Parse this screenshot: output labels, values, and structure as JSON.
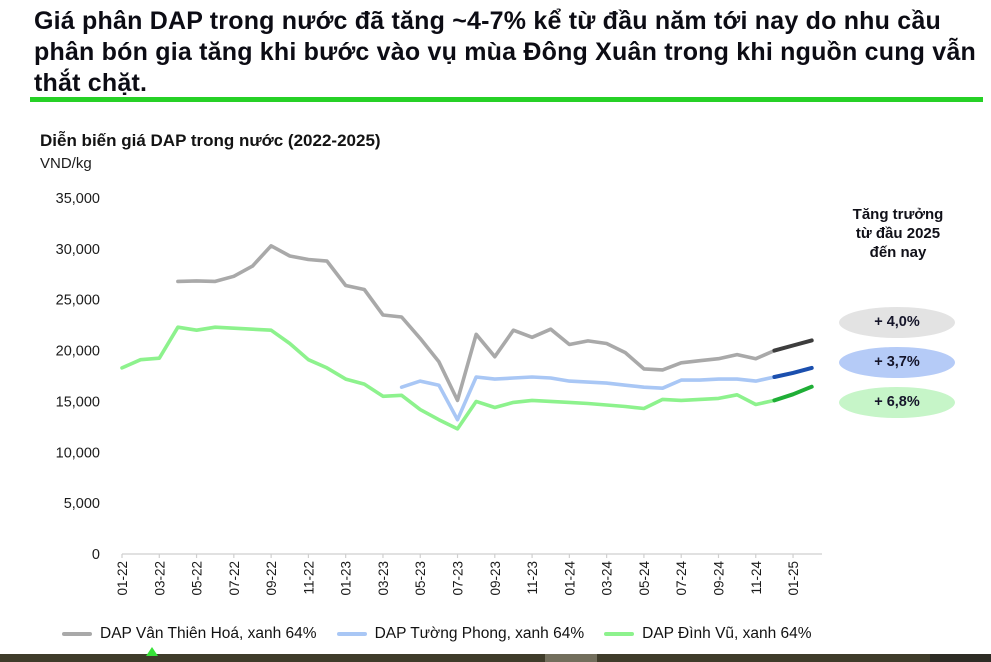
{
  "header": {
    "title": "Giá phân DAP trong nước đã tăng ~4-7% kể từ đầu năm tới nay do nhu cầu phân bón gia tăng khi bước vào vụ mùa Đông Xuân trong khi nguồn cung vẫn thắt chặt."
  },
  "chart": {
    "title": "Diễn biến giá DAP trong nước (2022-2025)",
    "unit": "VND/kg"
  },
  "growth_panel": {
    "heading": "Tăng trưởng từ đầu 2025 đến nay",
    "badges": [
      {
        "label": "+ 4,0%",
        "color": "#e3e3e3"
      },
      {
        "label": "+ 3,7%",
        "color": "#b5cbf7"
      },
      {
        "label": "+ 6,8%",
        "color": "#c6f5c8"
      }
    ]
  },
  "legend": {
    "items": [
      {
        "label": "DAP Vân Thiên Hoá, xanh 64%"
      },
      {
        "label": "DAP Tường Phong, xanh 64%"
      },
      {
        "label": "DAP Đình Vũ, xanh 64%"
      }
    ]
  },
  "chart_data": {
    "type": "line",
    "title": "Diễn biến giá DAP trong nước (2022-2025)",
    "ylabel": "VND/kg",
    "ylim": [
      0,
      35000
    ],
    "grid": false,
    "legend_position": "bottom",
    "y_tick_values": [
      35000,
      30000,
      25000,
      20000,
      15000,
      10000,
      5000,
      0
    ],
    "x_start": "2022-01",
    "x_end": "2025-02",
    "months_per_point": 1,
    "x_tick_labels": [
      "01-22",
      "03-22",
      "05-22",
      "07-22",
      "09-22",
      "11-22",
      "01-23",
      "03-23",
      "05-23",
      "07-23",
      "09-23",
      "11-23",
      "01-24",
      "03-24",
      "05-24",
      "07-24",
      "09-24",
      "11-24",
      "01-25"
    ],
    "highlight_from_index": 35,
    "highlight_note": "dark segments mark 2025 year-to-date growth shown in the badges",
    "series": [
      {
        "name": "DAP Vân Thiên Hoá, xanh 64%",
        "color": "#a9a9a9",
        "highlight_color": "#3d3d3d",
        "growth_2025_ytd": "+ 4,0%",
        "values": [
          null,
          null,
          null,
          26800,
          26850,
          26800,
          27300,
          28300,
          30300,
          29300,
          28950,
          28800,
          26400,
          26000,
          23500,
          23300,
          21200,
          18900,
          15100,
          21600,
          19400,
          22000,
          21300,
          22100,
          20600,
          20950,
          20700,
          19800,
          18200,
          18100,
          18800,
          19000,
          19200,
          19600,
          19200,
          20000,
          20500,
          21000
        ]
      },
      {
        "name": "DAP Tường Phong, xanh 64%",
        "color": "#a9c7f5",
        "highlight_color": "#1b4fae",
        "growth_2025_ytd": "+ 3,7%",
        "values": [
          null,
          null,
          null,
          null,
          null,
          null,
          null,
          null,
          null,
          null,
          null,
          null,
          null,
          null,
          null,
          16400,
          17000,
          16600,
          13200,
          17400,
          17200,
          17300,
          17400,
          17300,
          17000,
          16900,
          16800,
          16600,
          16400,
          16300,
          17100,
          17100,
          17200,
          17200,
          17000,
          17400,
          17800,
          18300
        ]
      },
      {
        "name": "DAP Đình Vũ, xanh 64%",
        "color": "#8df28d",
        "highlight_color": "#1fae36",
        "growth_2025_ytd": "+ 6,8%",
        "values": [
          18300,
          19100,
          19250,
          22300,
          22000,
          22300,
          22200,
          22100,
          22000,
          20700,
          19100,
          18300,
          17200,
          16700,
          15500,
          15600,
          14200,
          13200,
          12300,
          15000,
          14400,
          14900,
          15100,
          15000,
          14900,
          14800,
          14650,
          14500,
          14300,
          15200,
          15100,
          15200,
          15300,
          15650,
          14700,
          15100,
          15700,
          16450
        ]
      }
    ]
  }
}
